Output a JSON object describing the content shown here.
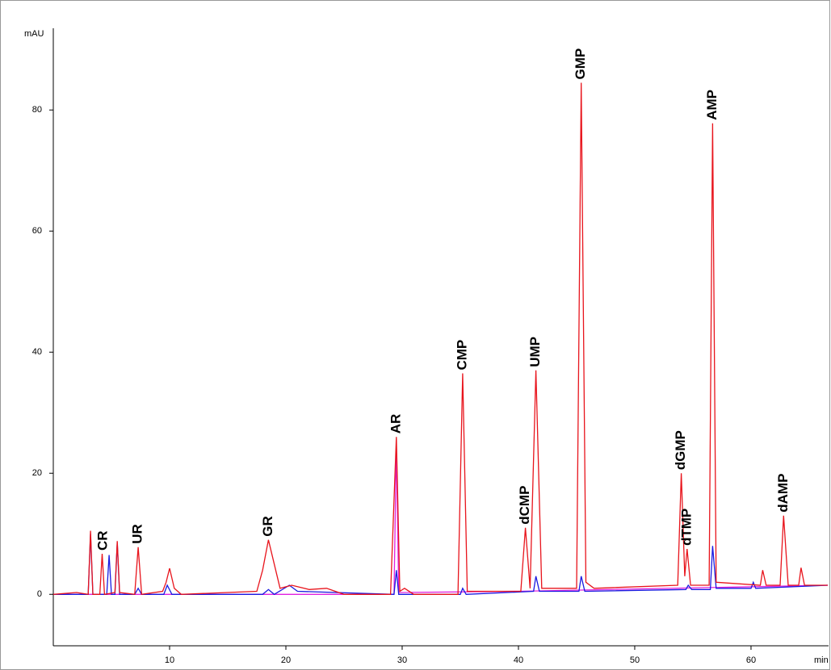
{
  "chart_data": {
    "type": "line",
    "y_label": "mAU",
    "x_label": "min",
    "xlim": [
      0,
      66.6
    ],
    "ylim": [
      -8.5,
      93.5
    ],
    "xticks": [
      10,
      20,
      30,
      40,
      50,
      60
    ],
    "yticks": [
      0,
      20,
      40,
      60,
      80
    ],
    "series": [
      {
        "color": "#e8141c",
        "x": [
          0,
          2,
          3.0,
          3.2,
          3.4,
          4.0,
          4.2,
          4.4,
          5.3,
          5.5,
          5.7,
          7.0,
          7.3,
          7.6,
          9.4,
          9.7,
          10.0,
          10.4,
          11,
          17.5,
          18.0,
          18.5,
          19.0,
          19.5,
          20.5,
          22,
          23.5,
          25,
          29.0,
          29.5,
          29.8,
          30.2,
          31,
          34.8,
          35.2,
          35.6,
          40.2,
          40.6,
          41.0,
          41.5,
          42.0,
          45.0,
          45.4,
          45.8,
          46.5,
          53.7,
          54.0,
          54.3,
          54.5,
          54.8,
          56.4,
          56.7,
          57.0,
          60.8,
          61.0,
          61.3,
          62.5,
          62.8,
          63.2,
          64.1,
          64.3,
          64.6,
          66.6
        ],
        "values": [
          0,
          0.3,
          0,
          10.5,
          0,
          0,
          6.7,
          0,
          0.3,
          8.8,
          0.3,
          0,
          7.8,
          0,
          0.5,
          2,
          4.3,
          1,
          0,
          0.5,
          4,
          9,
          5,
          1,
          1.5,
          0.8,
          1,
          0,
          0,
          26,
          0.5,
          1,
          0,
          0,
          36.5,
          0.5,
          0.5,
          11,
          1,
          37,
          1,
          1,
          84.5,
          2,
          1,
          1.5,
          20,
          3,
          7.5,
          1.5,
          1.5,
          77.8,
          2,
          1.5,
          4,
          1.5,
          1.5,
          13,
          1.5,
          1.5,
          4.4,
          1.5,
          1.5
        ]
      },
      {
        "color": "#1a1ae0",
        "x": [
          0,
          3.0,
          3.2,
          3.4,
          4.6,
          4.8,
          5.0,
          5.3,
          5.5,
          5.7,
          7.0,
          7.3,
          7.6,
          9.5,
          9.8,
          10.2,
          18.0,
          18.5,
          19,
          20.3,
          21,
          29.3,
          29.5,
          29.7,
          35.0,
          35.2,
          35.5,
          41.3,
          41.5,
          41.8,
          45.2,
          45.4,
          45.7,
          54.4,
          54.6,
          54.9,
          56.5,
          56.7,
          57.0,
          60.0,
          60.2,
          60.4,
          66.6
        ],
        "values": [
          0,
          0,
          10,
          0,
          0,
          6.5,
          0,
          0,
          8.5,
          0,
          0,
          1,
          0,
          0,
          1.5,
          0,
          0,
          0.8,
          0,
          1.5,
          0.5,
          0,
          4,
          0,
          0,
          1,
          0,
          0.5,
          3,
          0.5,
          0.5,
          3,
          0.5,
          0.8,
          1.5,
          0.8,
          0.8,
          8,
          1,
          1,
          2,
          1,
          1.5
        ]
      },
      {
        "color": "#e020e0",
        "x": [
          0,
          29.3,
          29.5,
          29.7,
          40,
          66.6
        ],
        "values": [
          0,
          0,
          25,
          0.3,
          0.5,
          1.5
        ]
      }
    ],
    "annotations": [
      {
        "text": "CR",
        "x": 4.3,
        "y": 6.7
      },
      {
        "text": "UR",
        "x": 7.3,
        "y": 7.8
      },
      {
        "text": "GR",
        "x": 18.5,
        "y": 9
      },
      {
        "text": "AR",
        "x": 29.5,
        "y": 26
      },
      {
        "text": "CMP",
        "x": 35.2,
        "y": 36.5
      },
      {
        "text": "dCMP",
        "x": 40.6,
        "y": 11
      },
      {
        "text": "UMP",
        "x": 41.5,
        "y": 37
      },
      {
        "text": "GMP",
        "x": 45.4,
        "y": 84.5
      },
      {
        "text": "dGMP",
        "x": 54.0,
        "y": 20
      },
      {
        "text": "dTMP",
        "x": 54.5,
        "y": 7.5
      },
      {
        "text": "AMP",
        "x": 56.7,
        "y": 77.8
      },
      {
        "text": "dAMP",
        "x": 62.8,
        "y": 13
      }
    ]
  }
}
